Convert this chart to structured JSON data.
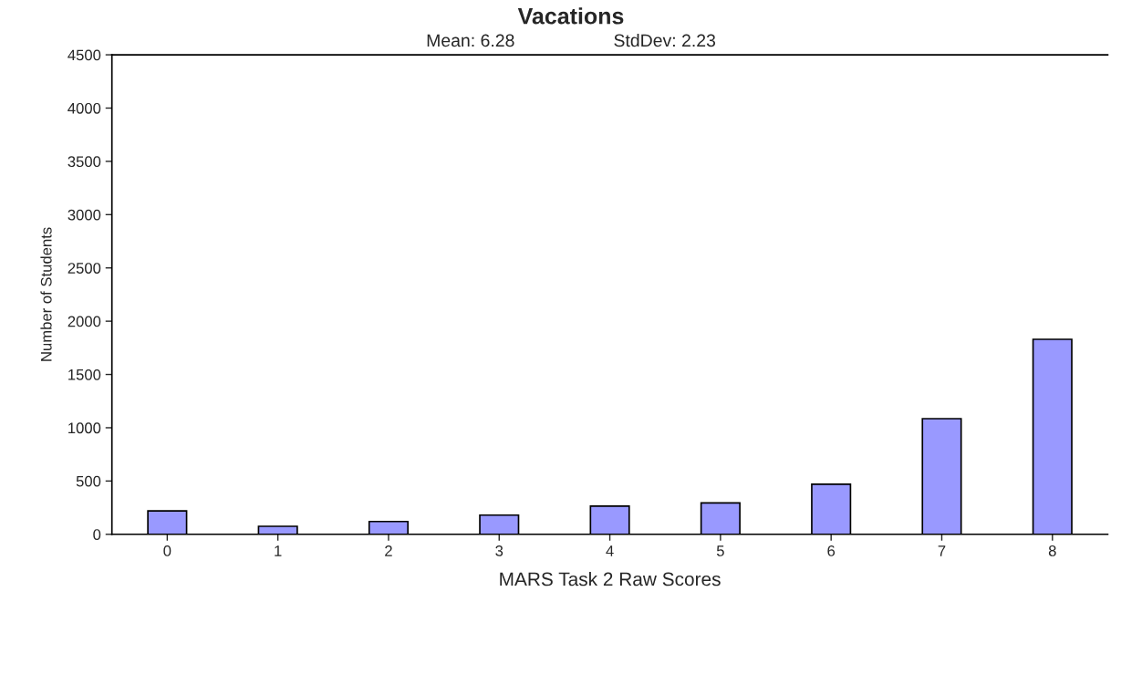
{
  "chart_data": {
    "type": "bar",
    "title": "Vacations",
    "subtitle": "Mean: 6.28                    StdDev: 2.23",
    "xlabel": "MARS Task 2 Raw Scores",
    "ylabel": "Number of Students",
    "categories": [
      "0",
      "1",
      "2",
      "3",
      "4",
      "5",
      "6",
      "7",
      "8"
    ],
    "values": [
      220,
      75,
      120,
      180,
      265,
      295,
      470,
      1085,
      1830
    ],
    "color": "#9999ff",
    "ylim": [
      0,
      4500
    ],
    "yticks": [
      0,
      500,
      1000,
      1500,
      2000,
      2500,
      3000,
      3500,
      4000,
      4500
    ],
    "grid": false
  }
}
